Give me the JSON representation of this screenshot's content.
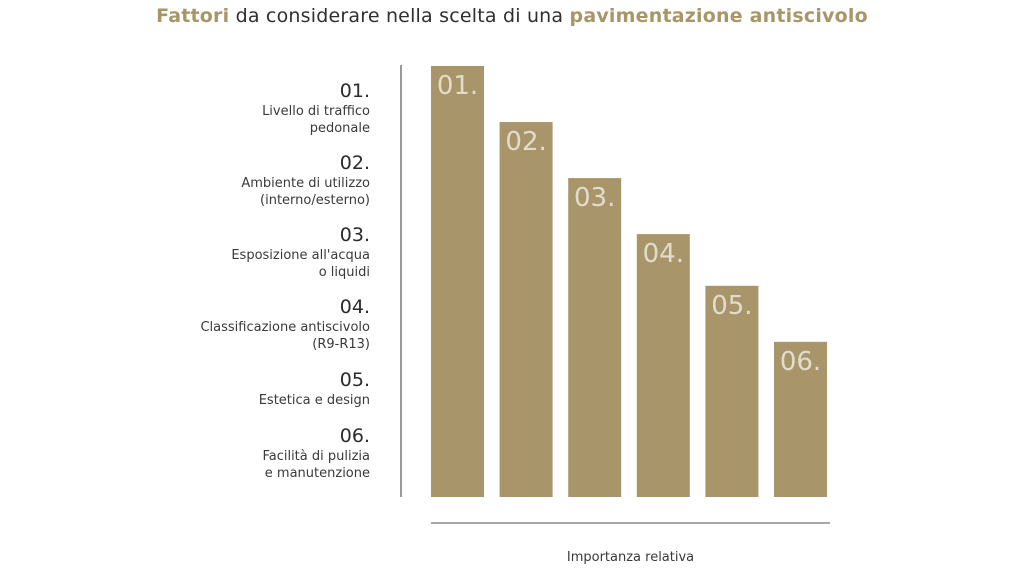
{
  "title": {
    "part1": "Fattori",
    "part2": " da considerare nella scelta di una ",
    "part3": "pavimentazione antiscivolo"
  },
  "legend": [
    {
      "num": "01.",
      "lines": [
        "Livello di traffico",
        "pedonale"
      ]
    },
    {
      "num": "02.",
      "lines": [
        "Ambiente di utilizzo",
        "(interno/esterno)"
      ]
    },
    {
      "num": "03.",
      "lines": [
        "Esposizione all'acqua",
        "o liquidi"
      ]
    },
    {
      "num": "04.",
      "lines": [
        "Classificazione antiscivolo",
        "(R9-R13)"
      ]
    },
    {
      "num": "05.",
      "lines": [
        "Estetica e design"
      ]
    },
    {
      "num": "06.",
      "lines": [
        "Facilità di pulizia",
        "e manutenzione"
      ]
    }
  ],
  "chart_data": {
    "type": "bar",
    "categories": [
      "01.",
      "02.",
      "03.",
      "04.",
      "05.",
      "06."
    ],
    "values": [
      100,
      87,
      74,
      61,
      49,
      36
    ],
    "title": "Fattori da considerare nella scelta di una pavimentazione antiscivolo",
    "xlabel": "Importanza relativa",
    "ylabel": "",
    "ylim": [
      0,
      100
    ],
    "grid": false,
    "bar_color": "#a8966a",
    "bar_label_color": "#e3dccb"
  }
}
